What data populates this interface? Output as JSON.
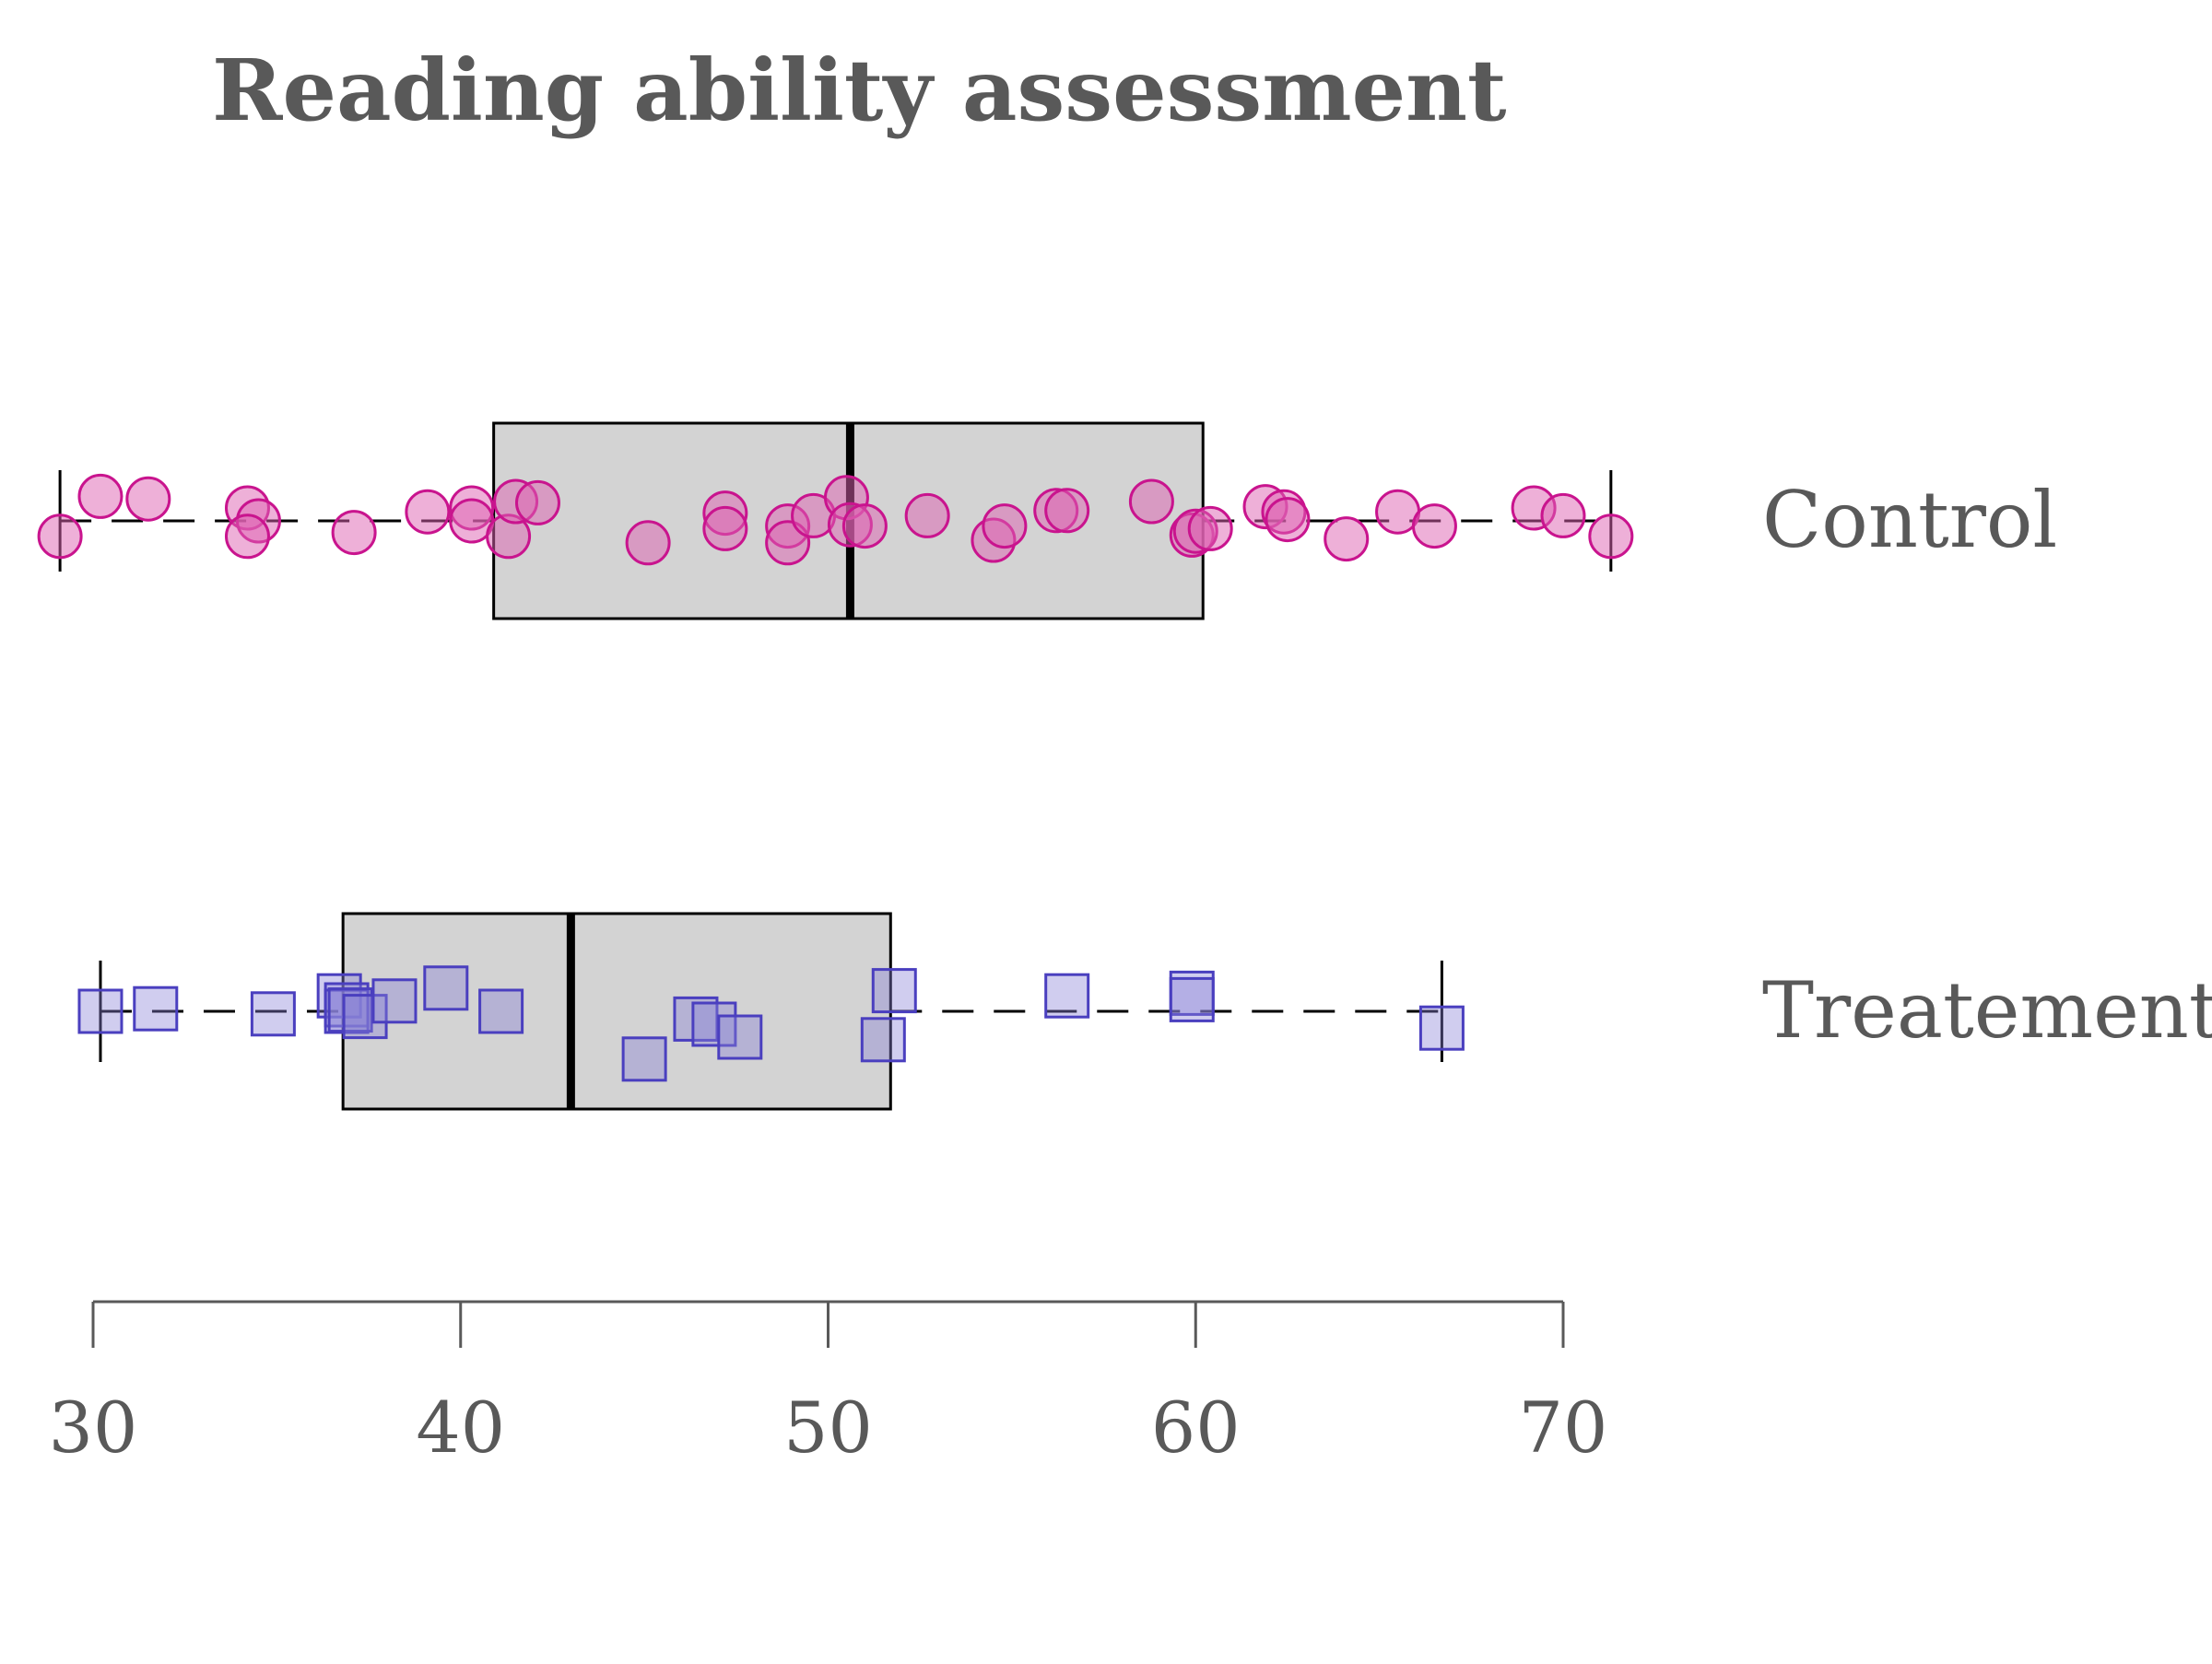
{
  "chart_data": {
    "type": "boxplot",
    "title": "Reading ability assessment",
    "xlim": [
      29,
      73
    ],
    "ticks": [
      30,
      40,
      50,
      60,
      70
    ],
    "tick_labels": [
      "30",
      "40",
      "50",
      "60",
      "70"
    ],
    "grid": false,
    "groups": [
      {
        "label": "Control",
        "marker": "circle",
        "fill": "#de62b1",
        "stroke": "#c9148e",
        "box_fill": "#d3d3d3",
        "whisker_low": 29.1,
        "q1": 40.9,
        "median": 50.6,
        "q3": 60.2,
        "whisker_high": 71.3,
        "points": [
          29.1,
          30.2,
          31.5,
          34.2,
          34.5,
          34.2,
          37.1,
          39.1,
          40.3,
          40.3,
          41.3,
          41.5,
          42.1,
          45.1,
          47.2,
          47.2,
          48.9,
          48.9,
          49.6,
          50.5,
          50.6,
          51.0,
          52.7,
          54.5,
          54.8,
          56.2,
          56.5,
          58.8,
          59.9,
          60.0,
          60.4,
          61.9,
          62.4,
          62.5,
          64.1,
          65.5,
          66.5,
          69.2,
          70.0,
          71.3
        ],
        "jitter": [
          0.12,
          -0.19,
          -0.17,
          -0.1,
          0.0,
          0.12,
          0.09,
          -0.07,
          -0.1,
          0.0,
          0.12,
          -0.15,
          -0.14,
          0.17,
          -0.06,
          0.06,
          0.04,
          0.17,
          -0.04,
          -0.18,
          0.03,
          0.04,
          -0.04,
          0.15,
          0.04,
          -0.08,
          -0.08,
          -0.15,
          0.11,
          0.08,
          0.06,
          -0.11,
          -0.07,
          -0.01,
          0.14,
          -0.07,
          0.04,
          -0.1,
          -0.04,
          0.12
        ]
      },
      {
        "label": "Treatement",
        "marker": "square",
        "fill": "#8a82d8",
        "stroke": "#4a3fbf",
        "box_fill": "#d3d3d3",
        "whisker_low": 30.2,
        "q1": 36.8,
        "median": 43.0,
        "q3": 51.7,
        "whisker_high": 66.7,
        "points": [
          30.2,
          31.7,
          34.9,
          36.7,
          36.9,
          36.9,
          37.0,
          37.4,
          38.2,
          39.6,
          41.1,
          45.0,
          46.4,
          46.9,
          47.6,
          51.5,
          51.8,
          56.5,
          59.9,
          59.9,
          66.7
        ],
        "jitter": [
          0.0,
          -0.02,
          0.02,
          -0.12,
          -0.05,
          0.0,
          -0.01,
          0.04,
          -0.08,
          -0.18,
          0.0,
          0.37,
          0.06,
          0.1,
          0.2,
          0.22,
          -0.16,
          -0.12,
          -0.14,
          -0.09,
          0.13
        ]
      }
    ]
  }
}
